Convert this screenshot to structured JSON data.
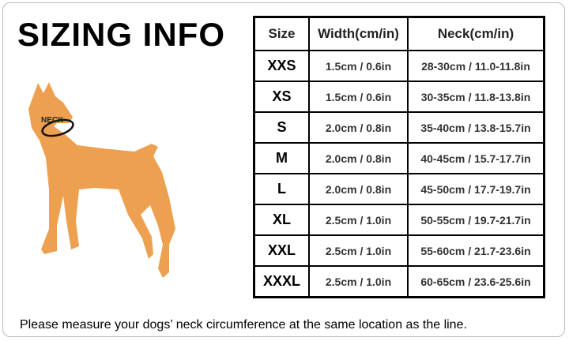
{
  "header": {
    "title": "SIZING INFO"
  },
  "figure": {
    "neck_label": "NECK"
  },
  "table": {
    "columns": [
      "Size",
      "Width(cm/in)",
      "Neck(cm/in)"
    ],
    "rows": [
      [
        "XXS",
        "1.5cm / 0.6in",
        "28-30cm / 11.0-11.8in"
      ],
      [
        "XS",
        "1.5cm / 0.6in",
        "30-35cm / 11.8-13.8in"
      ],
      [
        "S",
        "2.0cm / 0.8in",
        "35-40cm / 13.8-15.7in"
      ],
      [
        "M",
        "2.0cm / 0.8in",
        "40-45cm / 15.7-17.7in"
      ],
      [
        "L",
        "2.0cm / 0.8in",
        "45-50cm / 17.7-19.7in"
      ],
      [
        "XL",
        "2.5cm / 1.0in",
        "50-55cm / 19.7-21.7in"
      ],
      [
        "XXL",
        "2.5cm / 1.0in",
        "55-60cm / 21.7-23.6in"
      ],
      [
        "XXXL",
        "2.5cm / 1.0in",
        "60-65cm / 23.6-25.6in"
      ]
    ]
  },
  "footer": {
    "note": "Please measure your dogs’ neck circumference at the same location as the line."
  }
}
